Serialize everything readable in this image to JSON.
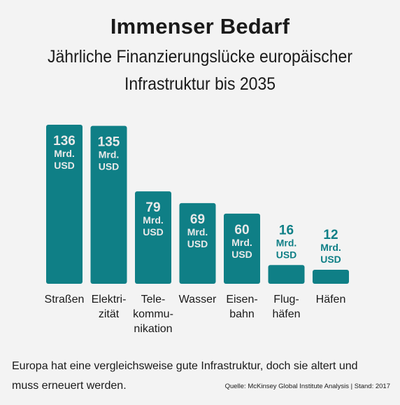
{
  "header": {
    "title": "Immenser Bedarf",
    "subtitle_line1": "Jährliche Finanzierungslücke europäischer",
    "subtitle_line2": "Infrastruktur bis 2035"
  },
  "chart_data": {
    "type": "bar",
    "title": "Immenser Bedarf",
    "subtitle": "Jährliche Finanzierungslücke europäischer Infrastruktur bis 2035",
    "unit_line1": "Mrd.",
    "unit_line2": "USD",
    "categories": [
      [
        "Straßen"
      ],
      [
        "Elektri-",
        "zität"
      ],
      [
        "Tele-",
        "kommu-",
        "nikation"
      ],
      [
        "Wasser"
      ],
      [
        "Eisen-",
        "bahn"
      ],
      [
        "Flug-",
        "häfen"
      ],
      [
        "Häfen"
      ]
    ],
    "values": [
      136,
      135,
      79,
      69,
      60,
      16,
      12
    ],
    "bar_color": "#0f7f86",
    "label_inside_color": "#e9e9e9",
    "label_outside_color": "#0f7f86",
    "ylim": [
      0,
      136
    ],
    "grid": false,
    "legend": "none"
  },
  "footer": {
    "note_line1": "Europa hat eine vergleichsweise gute Infrastruktur, doch sie altert und",
    "note_line2": "muss erneuert werden.",
    "source": "Quelle: McKinsey Global Institute Analysis | Stand: 2017"
  }
}
